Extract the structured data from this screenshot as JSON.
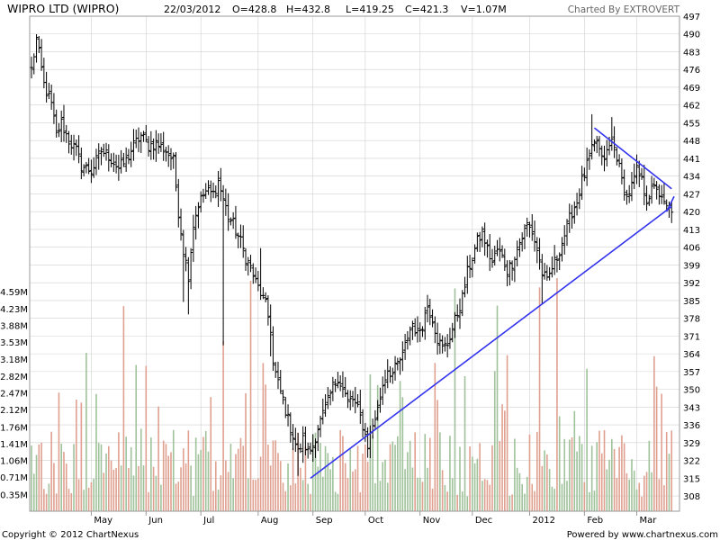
{
  "header": {
    "title": "WIPRO LTD (WIPRO)",
    "date": "22/03/2012",
    "open": "O=428.8",
    "high": "H=432.8",
    "low": "L=419.25",
    "close": "C=421.3",
    "volume": "V=1.07M",
    "charted_by": "Charted By EXTROVERT"
  },
  "footer": {
    "copyright": "Copyright © 2012 ChartNexus",
    "powered_by": "Powered by www.chartnexus.com"
  },
  "colors": {
    "frame": "#9a9a9a",
    "grid": "#d0d0d0",
    "price": "#000000",
    "vol_up": "#9fc29a",
    "vol_down": "#e0a090",
    "trendline": "#3333ee",
    "text": "#000000",
    "muted": "#666666"
  },
  "chart_data": {
    "type": "ohlc",
    "price_axis": {
      "range": [
        302,
        497
      ],
      "ticks": [
        497,
        490,
        483,
        476,
        469,
        462,
        455,
        448,
        441,
        434,
        427,
        420,
        413,
        406,
        399,
        392,
        385,
        378,
        371,
        364,
        357,
        350,
        343,
        336,
        329,
        322,
        315,
        308
      ]
    },
    "volume_axis": {
      "unit": "M",
      "range": [
        0,
        5.0
      ],
      "ticks": [
        4.59,
        4.23,
        3.88,
        3.53,
        3.18,
        2.82,
        2.47,
        2.12,
        1.76,
        1.41,
        1.06,
        0.71,
        0.35
      ],
      "tick_labels": [
        "4.59M",
        "4.23M",
        "3.88M",
        "3.53M",
        "3.18M",
        "2.82M",
        "2.47M",
        "2.12M",
        "1.76M",
        "1.41M",
        "1.06M",
        "0.71M",
        "0.35M"
      ]
    },
    "months": [
      {
        "label": "May",
        "day": 24
      },
      {
        "label": "Jun",
        "day": 46
      },
      {
        "label": "Jul",
        "day": 68
      },
      {
        "label": "Aug",
        "day": 91
      },
      {
        "label": "Sep",
        "day": 113
      },
      {
        "label": "Oct",
        "day": 134
      },
      {
        "label": "Nov",
        "day": 156
      },
      {
        "label": "Dec",
        "day": 177
      },
      {
        "label": "2012",
        "day": 200
      },
      {
        "label": "Feb",
        "day": 222
      },
      {
        "label": "Mar",
        "day": 243
      }
    ],
    "price_path": [
      [
        0,
        476
      ],
      [
        2,
        488
      ],
      [
        5,
        470
      ],
      [
        8,
        462
      ],
      [
        10,
        450
      ],
      [
        12,
        455
      ],
      [
        15,
        448
      ],
      [
        18,
        444
      ],
      [
        20,
        438
      ],
      [
        24,
        436
      ],
      [
        28,
        444
      ],
      [
        31,
        442
      ],
      [
        35,
        437
      ],
      [
        38,
        440
      ],
      [
        41,
        446
      ],
      [
        44,
        450
      ],
      [
        47,
        446
      ],
      [
        50,
        447
      ],
      [
        54,
        444
      ],
      [
        57,
        440
      ],
      [
        59,
        420
      ],
      [
        61,
        405
      ],
      [
        63,
        395
      ],
      [
        65,
        415
      ],
      [
        67,
        423
      ],
      [
        70,
        428
      ],
      [
        73,
        427
      ],
      [
        75,
        432
      ],
      [
        77,
        425
      ],
      [
        79,
        418
      ],
      [
        81,
        415
      ],
      [
        84,
        408
      ],
      [
        86,
        402
      ],
      [
        88,
        398
      ],
      [
        90,
        392
      ],
      [
        92,
        388
      ],
      [
        94,
        383
      ],
      [
        96,
        374
      ],
      [
        97,
        360
      ],
      [
        99,
        352
      ],
      [
        101,
        346
      ],
      [
        103,
        338
      ],
      [
        105,
        332
      ],
      [
        107,
        325
      ],
      [
        109,
        330
      ],
      [
        111,
        325
      ],
      [
        113,
        328
      ],
      [
        115,
        335
      ],
      [
        117,
        340
      ],
      [
        119,
        345
      ],
      [
        121,
        351
      ],
      [
        123,
        355
      ],
      [
        125,
        350
      ],
      [
        127,
        345
      ],
      [
        129,
        346
      ],
      [
        131,
        342
      ],
      [
        133,
        336
      ],
      [
        135,
        328
      ],
      [
        137,
        336
      ],
      [
        139,
        342
      ],
      [
        141,
        352
      ],
      [
        143,
        358
      ],
      [
        145,
        356
      ],
      [
        147,
        360
      ],
      [
        149,
        363
      ],
      [
        151,
        371
      ],
      [
        153,
        376
      ],
      [
        155,
        372
      ],
      [
        157,
        376
      ],
      [
        159,
        383
      ],
      [
        161,
        378
      ],
      [
        163,
        370
      ],
      [
        165,
        366
      ],
      [
        167,
        368
      ],
      [
        169,
        374
      ],
      [
        171,
        380
      ],
      [
        173,
        386
      ],
      [
        175,
        396
      ],
      [
        177,
        402
      ],
      [
        179,
        408
      ],
      [
        181,
        412
      ],
      [
        183,
        405
      ],
      [
        185,
        400
      ],
      [
        187,
        405
      ],
      [
        189,
        402
      ],
      [
        191,
        397
      ],
      [
        193,
        400
      ],
      [
        195,
        406
      ],
      [
        197,
        410
      ],
      [
        199,
        415
      ],
      [
        201,
        412
      ],
      [
        203,
        405
      ],
      [
        205,
        396
      ],
      [
        207,
        392
      ],
      [
        209,
        398
      ],
      [
        211,
        402
      ],
      [
        213,
        408
      ],
      [
        215,
        414
      ],
      [
        217,
        420
      ],
      [
        219,
        424
      ],
      [
        221,
        432
      ],
      [
        223,
        438
      ],
      [
        225,
        444
      ],
      [
        227,
        448
      ],
      [
        229,
        440
      ],
      [
        231,
        443
      ],
      [
        233,
        448
      ],
      [
        235,
        442
      ],
      [
        237,
        432
      ],
      [
        239,
        426
      ],
      [
        241,
        430
      ],
      [
        243,
        436
      ],
      [
        245,
        432
      ],
      [
        247,
        425
      ],
      [
        249,
        428
      ],
      [
        251,
        430
      ],
      [
        253,
        424
      ],
      [
        255,
        421.3
      ]
    ],
    "annotations": [
      {
        "type": "trendline",
        "from": [
          112,
          315
        ],
        "to": [
          257,
          422
        ]
      },
      {
        "type": "trendline",
        "from": [
          226,
          453
        ],
        "to": [
          257,
          429
        ]
      },
      {
        "type": "trendline",
        "from": [
          255,
          420
        ],
        "to": [
          258,
          426
        ]
      }
    ]
  }
}
